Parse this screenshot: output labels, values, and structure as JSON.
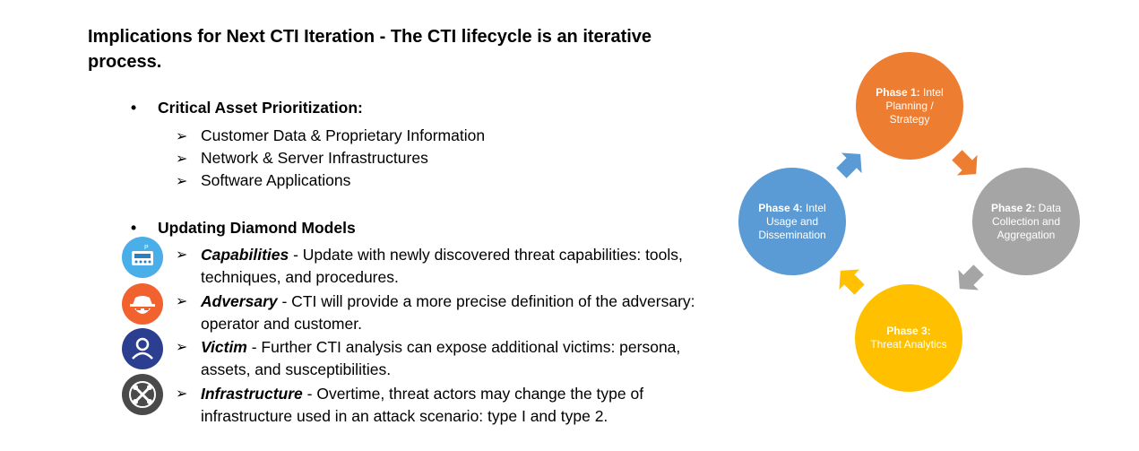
{
  "title": "Implications for Next CTI Iteration - The CTI lifecycle is an iterative process.",
  "section1": {
    "heading": "Critical Asset Prioritization:",
    "items": [
      "Customer Data & Proprietary Information",
      "Network & Server Infrastructures",
      "Software Applications"
    ]
  },
  "section2": {
    "heading": "Updating Diamond Models",
    "items": [
      {
        "term": "Capabilities",
        "text": " - Update with newly discovered threat capabilities: tools, techniques, and procedures.",
        "icon": "capabilities-icon",
        "color": "#4aaee8"
      },
      {
        "term": "Adversary",
        "text": " - CTI will provide a more precise definition of the adversary: operator and customer.",
        "icon": "adversary-icon",
        "color": "#f2622e"
      },
      {
        "term": "Victim",
        "text": " - Further CTI analysis can expose additional victims: persona, assets, and susceptibilities.",
        "icon": "victim-icon",
        "color": "#2c3e8f"
      },
      {
        "term": "Infrastructure",
        "text": " - Overtime, threat actors may change the type of infrastructure used in an attack scenario: type I and type 2.",
        "icon": "infrastructure-icon",
        "color": "#4a4a4a"
      }
    ]
  },
  "cycle": {
    "phases": [
      {
        "label": "Phase 1:",
        "text": "Intel Planning / Strategy",
        "color": "#ed7d31"
      },
      {
        "label": "Phase 2:",
        "text": "Data Collection and Aggregation",
        "color": "#a5a5a5"
      },
      {
        "label": "Phase 3:",
        "text": "Threat Analytics",
        "color": "#ffc000"
      },
      {
        "label": "Phase 4:",
        "text": "Intel Usage and Dissemination",
        "color": "#5b9bd5"
      }
    ]
  }
}
